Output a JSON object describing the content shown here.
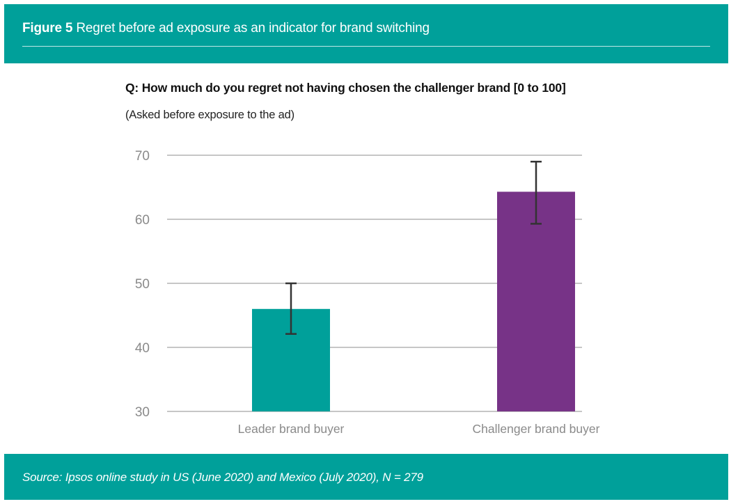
{
  "header": {
    "figure_label": "Figure 5",
    "title": "Regret before ad exposure as an indicator for brand switching"
  },
  "question": "Q: How much do you regret not having chosen the challenger brand [0 to 100]",
  "subtitle": "(Asked before exposure to the ad)",
  "footer": {
    "source": "Source: Ipsos online study in US (June 2020) and Mexico (July 2020), N = 279"
  },
  "colors": {
    "brand_teal": "#00a09a",
    "bar_leader": "#00a09a",
    "bar_challenger": "#773387",
    "gridline": "#8c8c8c",
    "error_bar": "#333333",
    "tick_label": "#8a8a8a"
  },
  "chart_data": {
    "type": "bar",
    "title": "Q: How much do you regret not having chosen the challenger brand [0 to 100]",
    "subtitle": "(Asked before exposure to the ad)",
    "xlabel": "",
    "ylabel": "",
    "ylim": [
      30,
      70
    ],
    "yticks": [
      70,
      60,
      50,
      40,
      30
    ],
    "grid": true,
    "legend": "none",
    "categories": [
      "Leader brand buyer",
      "Challenger brand buyer"
    ],
    "values": [
      46,
      64.3
    ],
    "error_low": [
      42.1,
      59.3
    ],
    "error_high": [
      50,
      69
    ],
    "bar_colors": [
      "#00a09a",
      "#773387"
    ]
  }
}
